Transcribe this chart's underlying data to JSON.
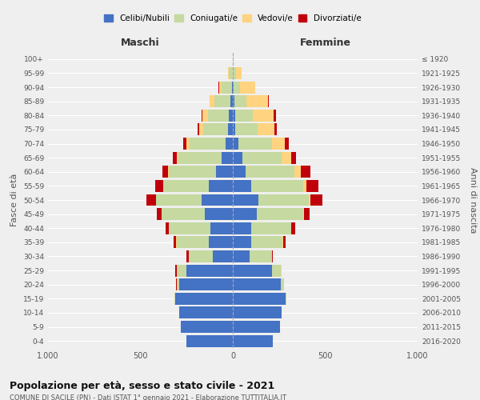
{
  "age_groups": [
    "0-4",
    "5-9",
    "10-14",
    "15-19",
    "20-24",
    "25-29",
    "30-34",
    "35-39",
    "40-44",
    "45-49",
    "50-54",
    "55-59",
    "60-64",
    "65-69",
    "70-74",
    "75-79",
    "80-84",
    "85-89",
    "90-94",
    "95-99",
    "100+"
  ],
  "birth_years": [
    "2016-2020",
    "2011-2015",
    "2006-2010",
    "2001-2005",
    "1996-2000",
    "1991-1995",
    "1986-1990",
    "1981-1985",
    "1976-1980",
    "1971-1975",
    "1966-1970",
    "1961-1965",
    "1956-1960",
    "1951-1955",
    "1946-1950",
    "1941-1945",
    "1936-1940",
    "1931-1935",
    "1926-1930",
    "1921-1925",
    "≤ 1920"
  ],
  "males": {
    "celibi": [
      250,
      280,
      290,
      310,
      290,
      250,
      110,
      130,
      120,
      150,
      170,
      130,
      90,
      60,
      40,
      25,
      20,
      15,
      5,
      2,
      0
    ],
    "coniugati": [
      0,
      0,
      0,
      5,
      15,
      55,
      130,
      175,
      225,
      235,
      245,
      245,
      255,
      235,
      195,
      135,
      115,
      85,
      55,
      20,
      2
    ],
    "vedovi": [
      0,
      0,
      0,
      0,
      0,
      0,
      0,
      2,
      2,
      2,
      2,
      3,
      5,
      8,
      15,
      20,
      30,
      25,
      15,
      5,
      0
    ],
    "divorziati": [
      0,
      0,
      0,
      0,
      2,
      5,
      10,
      15,
      18,
      25,
      50,
      40,
      30,
      20,
      18,
      12,
      5,
      2,
      2,
      0,
      0
    ]
  },
  "females": {
    "nubili": [
      215,
      255,
      265,
      285,
      260,
      210,
      90,
      100,
      100,
      130,
      140,
      100,
      70,
      50,
      30,
      15,
      12,
      10,
      5,
      2,
      0
    ],
    "coniugate": [
      0,
      0,
      0,
      5,
      15,
      50,
      120,
      170,
      215,
      250,
      270,
      280,
      265,
      215,
      180,
      120,
      95,
      65,
      35,
      15,
      2
    ],
    "vedove": [
      0,
      0,
      0,
      0,
      0,
      2,
      2,
      2,
      3,
      5,
      10,
      20,
      35,
      50,
      70,
      90,
      115,
      115,
      80,
      30,
      2
    ],
    "divorziate": [
      0,
      0,
      0,
      0,
      2,
      3,
      5,
      12,
      18,
      30,
      65,
      65,
      50,
      25,
      22,
      15,
      12,
      5,
      3,
      2,
      0
    ]
  },
  "colors": {
    "celibi_nubili": "#4472C4",
    "coniugati": "#C5D9A0",
    "vedovi": "#FFD37F",
    "divorziati": "#C0010C"
  },
  "xlim": 1000,
  "title": "Popolazione per età, sesso e stato civile - 2021",
  "subtitle": "COMUNE DI SACILE (PN) - Dati ISTAT 1° gennaio 2021 - Elaborazione TUTTITALIA.IT",
  "xlabel_left": "Maschi",
  "xlabel_right": "Femmine",
  "ylabel_left": "Fasce di età",
  "ylabel_right": "Anni di nascita",
  "bg_color": "#efefef"
}
